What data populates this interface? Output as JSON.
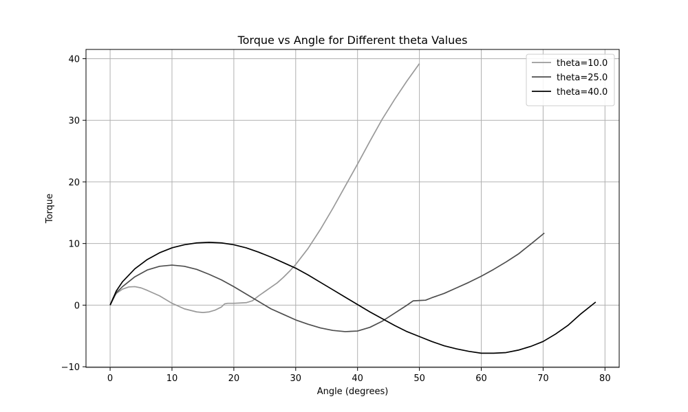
{
  "chart_data": {
    "type": "line",
    "title": "Torque vs Angle for Different theta Values",
    "xlabel": "Angle (degrees)",
    "ylabel": "Torque",
    "xlim": [
      -3.9,
      82.3
    ],
    "ylim": [
      -10.1,
      41.5
    ],
    "xticks": [
      0,
      10,
      20,
      30,
      40,
      50,
      60,
      70,
      80
    ],
    "yticks": [
      -10,
      0,
      10,
      20,
      30,
      40
    ],
    "grid": true,
    "legend": "top-right",
    "series": [
      {
        "name": "theta=10.0",
        "color": "#999999",
        "x": [
          0,
          0.5,
          1,
          2,
          3,
          4,
          5,
          6,
          8,
          10,
          12,
          14,
          15,
          16,
          17,
          18,
          18.5,
          19,
          20,
          21,
          22,
          23,
          24,
          25,
          26,
          27,
          28,
          29,
          30,
          32,
          34,
          36,
          38,
          40,
          42,
          44,
          46,
          48,
          50
        ],
        "y": [
          0,
          1.2,
          1.9,
          2.6,
          2.95,
          3.0,
          2.8,
          2.4,
          1.5,
          0.3,
          -0.6,
          -1.1,
          -1.2,
          -1.1,
          -0.8,
          -0.3,
          0.2,
          0.3,
          0.3,
          0.35,
          0.4,
          0.7,
          1.5,
          2.2,
          2.9,
          3.6,
          4.5,
          5.5,
          6.6,
          9.2,
          12.3,
          15.7,
          19.3,
          22.9,
          26.6,
          30.2,
          33.4,
          36.4,
          39.2
        ]
      },
      {
        "name": "theta=25.0",
        "color": "#4d4d4d",
        "x": [
          0,
          1,
          2,
          4,
          6,
          8,
          10,
          12,
          14,
          16,
          18,
          20,
          22,
          24,
          26,
          28,
          30,
          32,
          34,
          36,
          38,
          40,
          42,
          44,
          46,
          48,
          49,
          50,
          51,
          52,
          54,
          56,
          58,
          60,
          62,
          64,
          66,
          68,
          70.2
        ],
        "y": [
          0,
          2.0,
          3.0,
          4.6,
          5.7,
          6.3,
          6.5,
          6.3,
          5.8,
          5.0,
          4.1,
          3.0,
          1.8,
          0.6,
          -0.6,
          -1.5,
          -2.4,
          -3.1,
          -3.7,
          -4.1,
          -4.3,
          -4.2,
          -3.6,
          -2.6,
          -1.3,
          0.0,
          0.7,
          0.75,
          0.8,
          1.2,
          1.9,
          2.8,
          3.7,
          4.7,
          5.8,
          7.0,
          8.3,
          9.9,
          11.7
        ]
      },
      {
        "name": "theta=40.0",
        "color": "#000000",
        "x": [
          0,
          1,
          2,
          4,
          6,
          8,
          10,
          12,
          14,
          16,
          18,
          20,
          22,
          24,
          26,
          28,
          30,
          32,
          34,
          36,
          38,
          40,
          42,
          44,
          46,
          48,
          50,
          52,
          54,
          56,
          58,
          60,
          62,
          64,
          66,
          68,
          70,
          72,
          74,
          76,
          78.5
        ],
        "y": [
          0,
          2.3,
          3.8,
          5.9,
          7.4,
          8.5,
          9.3,
          9.8,
          10.1,
          10.2,
          10.1,
          9.8,
          9.3,
          8.6,
          7.8,
          6.9,
          6.0,
          4.9,
          3.7,
          2.5,
          1.3,
          0.1,
          -1.1,
          -2.2,
          -3.3,
          -4.3,
          -5.1,
          -5.9,
          -6.6,
          -7.1,
          -7.5,
          -7.8,
          -7.8,
          -7.7,
          -7.3,
          -6.7,
          -5.9,
          -4.7,
          -3.3,
          -1.5,
          0.5
        ]
      }
    ]
  }
}
